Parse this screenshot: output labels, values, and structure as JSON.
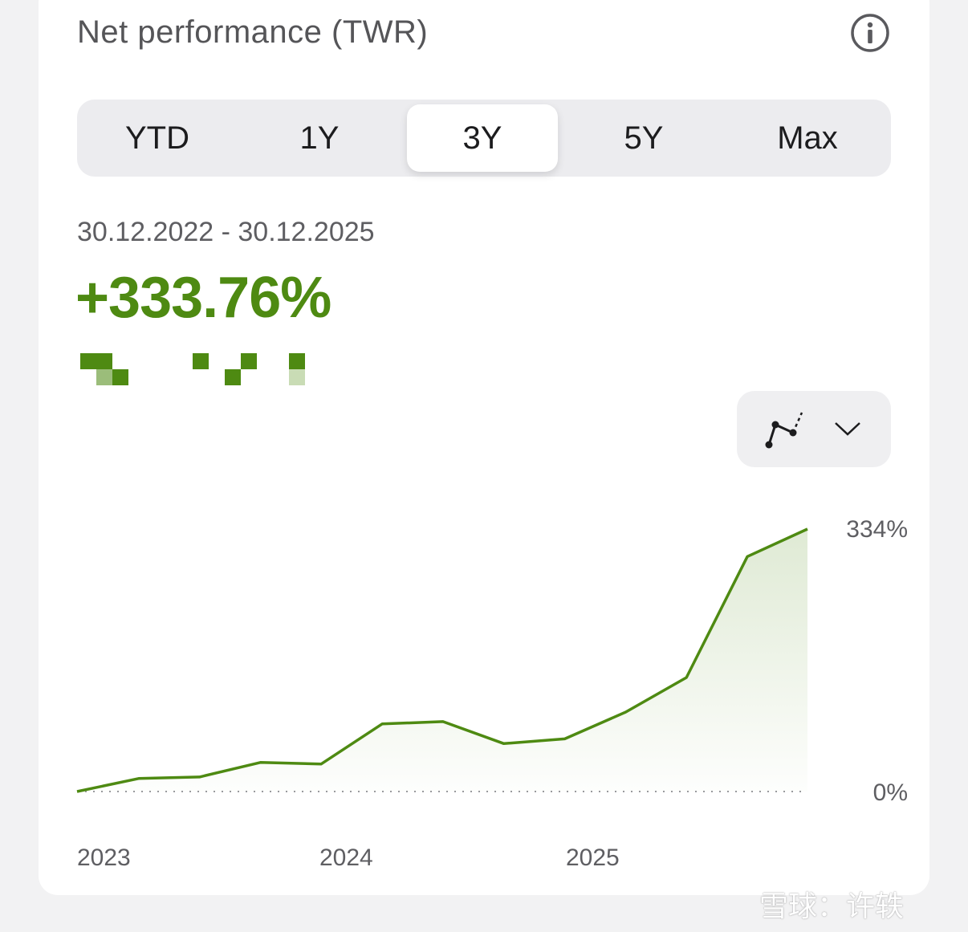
{
  "header": {
    "title": "Net performance (TWR)",
    "info_icon": "info-icon"
  },
  "range_tabs": [
    {
      "label": "YTD",
      "selected": false
    },
    {
      "label": "1Y",
      "selected": false
    },
    {
      "label": "3Y",
      "selected": true
    },
    {
      "label": "5Y",
      "selected": false
    },
    {
      "label": "Max",
      "selected": false
    }
  ],
  "summary": {
    "date_range": "30.12.2022 - 30.12.2025",
    "performance": "+333.76%"
  },
  "chart_controls": {
    "chart_type_icon": "line-chart-icon",
    "dropdown_icon": "chevron-down-icon"
  },
  "colors": {
    "accent": "#4e8a12",
    "text_primary": "#1c1c1e",
    "text_secondary": "#5e5e62"
  },
  "chart_data": {
    "type": "area",
    "x_ticks": [
      "2023",
      "2024",
      "2025"
    ],
    "y_ticks": [
      "334%",
      "0%"
    ],
    "y_range": [
      0,
      334
    ],
    "series": [
      {
        "x": [
          2022.997,
          2023.25,
          2023.5,
          2023.75,
          2024.0,
          2024.25,
          2024.5,
          2024.75,
          2025.0,
          2025.25,
          2025.5,
          2025.75,
          2025.997
        ],
        "values": [
          0,
          16.5,
          18.5,
          37,
          35,
          86,
          89,
          61,
          67,
          101,
          145,
          299,
          334
        ]
      }
    ],
    "baseline": 0,
    "grid": false,
    "legend": "none"
  },
  "watermark": "雪球：许轶"
}
